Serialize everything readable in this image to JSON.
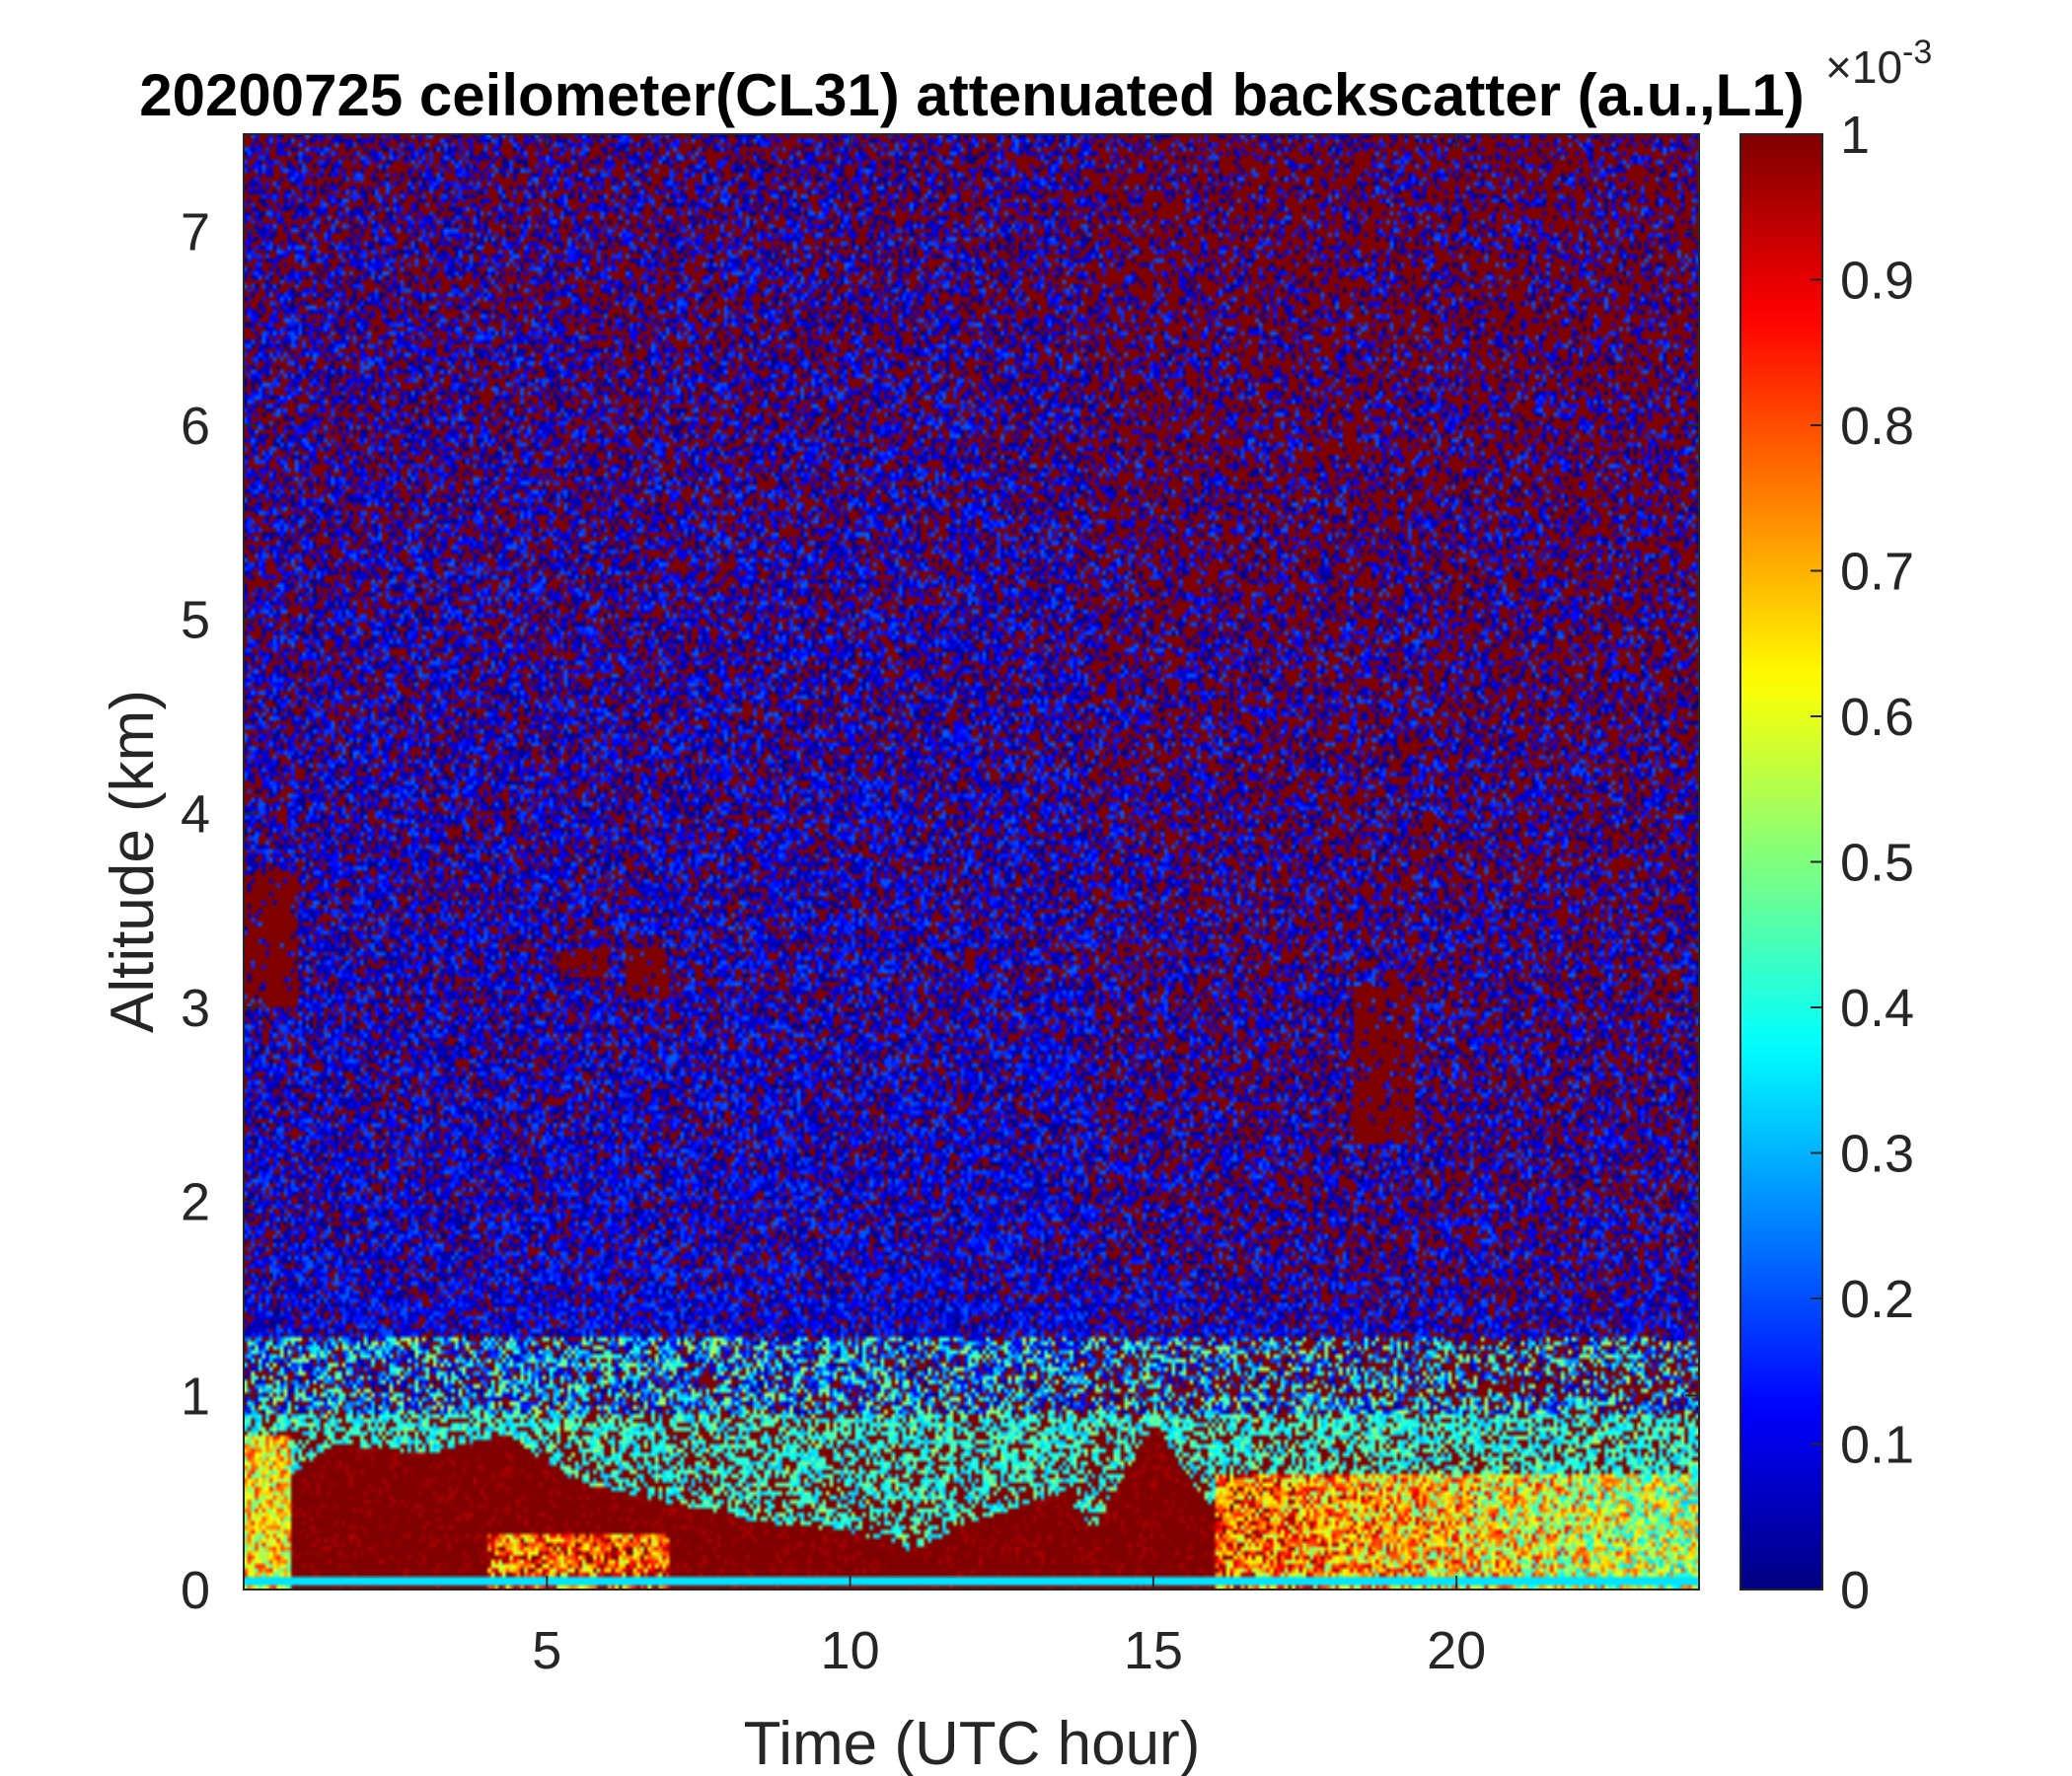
{
  "chart_data": {
    "type": "heatmap",
    "title": "20200725 ceilometer(CL31) attenuated backscatter (a.u.,L1)",
    "xlabel": "Time (UTC hour)",
    "ylabel": "Altitude (km)",
    "xlim": [
      0,
      24
    ],
    "ylim": [
      0,
      7.5
    ],
    "xticks": [
      5,
      10,
      15,
      20
    ],
    "yticks": [
      0,
      1,
      2,
      3,
      4,
      5,
      6,
      7
    ],
    "colormap": "jet",
    "colorbar": {
      "ticks": [
        0,
        0.1,
        0.2,
        0.3,
        0.4,
        0.5,
        0.6,
        0.7,
        0.8,
        0.9,
        1
      ],
      "tick_labels": [
        "0",
        "0.1",
        "0.2",
        "0.3",
        "0.4",
        "0.5",
        "0.6",
        "0.7",
        "0.8",
        "0.9",
        "1"
      ],
      "multiplier_base": "×10",
      "multiplier_exponent": "-3",
      "clim": [
        0,
        1
      ]
    },
    "features": {
      "boundary_layer_top_km": [
        [
          0.8,
          0.6
        ],
        [
          1.5,
          0.75
        ],
        [
          3,
          0.7
        ],
        [
          4.3,
          0.8
        ],
        [
          5.5,
          0.55
        ],
        [
          7,
          0.45
        ],
        [
          8.5,
          0.35
        ],
        [
          10,
          0.3
        ],
        [
          11,
          0.2
        ],
        [
          12,
          0.35
        ],
        [
          13.5,
          0.5
        ],
        [
          14,
          0.3
        ],
        [
          15,
          0.85
        ],
        [
          16,
          0.4
        ],
        [
          24,
          0.4
        ]
      ],
      "elevated_layers": [
        {
          "x": [
            5.2,
            6.0
          ],
          "y": [
            3.15,
            3.3
          ]
        },
        {
          "x": [
            6.3,
            7.0
          ],
          "y": [
            3.05,
            3.3
          ]
        },
        {
          "x": [
            18.3,
            19.3
          ],
          "y": [
            2.3,
            3.1
          ]
        },
        {
          "x": [
            0.0,
            0.9
          ],
          "y": [
            3.0,
            3.7
          ]
        }
      ]
    }
  },
  "colors": {
    "background": "#ffffff",
    "text": "#262626",
    "axis": "#262626"
  }
}
